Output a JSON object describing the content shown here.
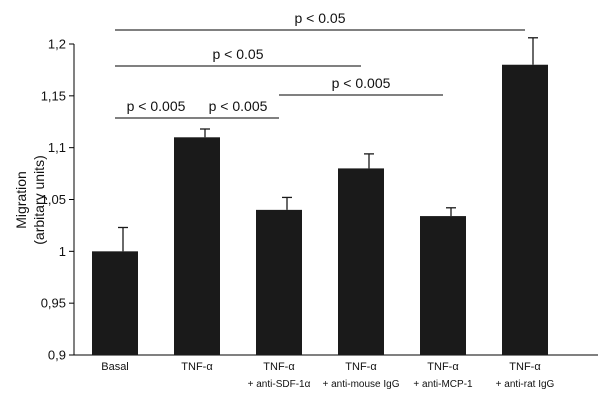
{
  "chart_data": {
    "type": "bar",
    "ylabel": "Migration",
    "ylabel_units": "(arbitary units)",
    "ylim": [
      0.9,
      1.2
    ],
    "yticks": [
      "0,9",
      "0,95",
      "1",
      "1,05",
      "1,1",
      "1,15",
      "1,2"
    ],
    "categories": [
      {
        "line1": "Basal",
        "line2": ""
      },
      {
        "line1": "TNF-α",
        "line2": ""
      },
      {
        "line1": "TNF-α",
        "line2": "+ anti-SDF-1α"
      },
      {
        "line1": "TNF-α",
        "line2": "+ anti-mouse IgG"
      },
      {
        "line1": "TNF-α",
        "line2": "+ anti-MCP-1"
      },
      {
        "line1": "TNF-α",
        "line2": "+ anti-rat IgG"
      }
    ],
    "values": [
      1.0,
      1.11,
      1.04,
      1.08,
      1.034,
      1.18
    ],
    "errors": [
      0.023,
      0.008,
      0.012,
      0.014,
      0.008,
      0.026
    ],
    "bar_color": "#1a1a1a",
    "significance": [
      {
        "from": 0,
        "to": 5,
        "label": "p < 0.05"
      },
      {
        "from": 0,
        "to": 3,
        "label": "p < 0.05"
      },
      {
        "from": 2,
        "to": 4,
        "label": "p < 0.005"
      },
      {
        "from": 0,
        "to": 1,
        "label": "p < 0.005"
      },
      {
        "from": 1,
        "to": 2,
        "label": "p < 0.005"
      }
    ]
  }
}
